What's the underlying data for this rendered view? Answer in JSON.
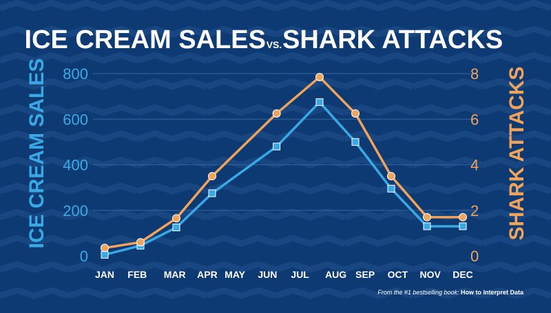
{
  "title_left": "ICE CREAM SALES",
  "title_vs": "VS.",
  "title_right": "SHARK ATTACKS",
  "footer_prefix": "From the #1 bestselling book: ",
  "footer_book": "How to Interpret Data",
  "colors": {
    "background": "#0d3a73",
    "ice_cream": "#39a9e6",
    "shark": "#f0a35a",
    "grid": "#2d5f98",
    "text": "#ffffff"
  },
  "chart_data": {
    "type": "line",
    "title": "ICE CREAM SALES VS. SHARK ATTACKS",
    "categories": [
      "JAN",
      "FEB",
      "MAR",
      "APR",
      "MAY",
      "JUN",
      "JUL",
      "AUG",
      "SEP",
      "OCT",
      "NOV",
      "DEC"
    ],
    "x_positions": [
      0,
      1,
      2.15,
      3.15,
      4,
      5,
      6,
      7.1,
      8,
      9,
      10,
      11
    ],
    "ylabel_left": "ICE CREAM SALES",
    "ylabel_right": "SHARK ATTACKS",
    "ylim_left": [
      0,
      800
    ],
    "ylim_right": [
      0,
      8
    ],
    "yticks_left": [
      0,
      200,
      400,
      600,
      800
    ],
    "yticks_right": [
      0,
      2,
      4,
      6,
      8
    ],
    "grid": true,
    "legend": "none",
    "series": [
      {
        "name": "ICE CREAM SALES",
        "axis": "left",
        "marker": "square",
        "x": [
          0,
          1,
          2,
          3,
          4.8,
          6,
          7,
          8,
          9,
          10
        ],
        "values": [
          5,
          45,
          125,
          275,
          480,
          675,
          500,
          295,
          130,
          130
        ]
      },
      {
        "name": "SHARK ATTACKS",
        "axis": "right",
        "marker": "circle",
        "x": [
          0,
          1,
          2,
          3,
          4.8,
          6,
          7,
          8,
          9,
          10
        ],
        "values": [
          0.35,
          0.6,
          1.65,
          3.5,
          6.25,
          7.85,
          6.25,
          3.5,
          1.7,
          1.7
        ]
      }
    ]
  }
}
